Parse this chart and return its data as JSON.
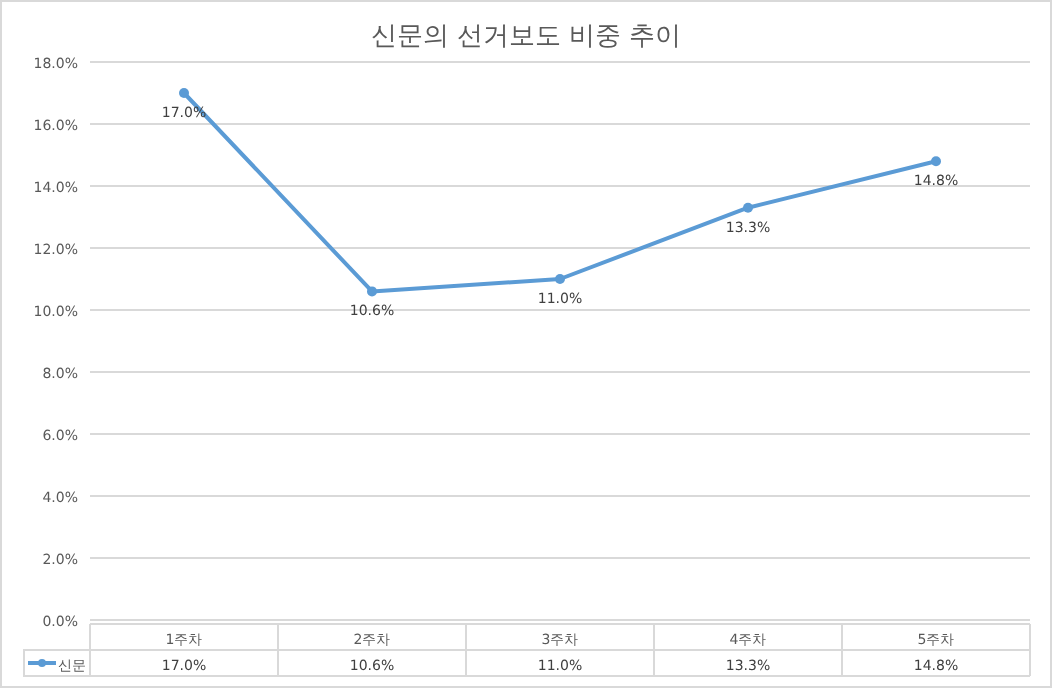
{
  "chart_data": {
    "type": "line",
    "title": "신문의 선거보도 비중 추이",
    "categories": [
      "1주차",
      "2주차",
      "3주차",
      "4주차",
      "5주차"
    ],
    "series": [
      {
        "name": "신문",
        "color": "#5b9bd5",
        "values": [
          17.0,
          10.6,
          11.0,
          13.3,
          14.8
        ],
        "value_labels": [
          "17.0%",
          "10.6%",
          "11.0%",
          "13.3%",
          "14.8%"
        ]
      }
    ],
    "ylim": [
      0,
      18
    ],
    "yticks": [
      {
        "value": 0,
        "label": "0.0%"
      },
      {
        "value": 2,
        "label": "2.0%"
      },
      {
        "value": 4,
        "label": "4.0%"
      },
      {
        "value": 6,
        "label": "6.0%"
      },
      {
        "value": 8,
        "label": "8.0%"
      },
      {
        "value": 10,
        "label": "10.0%"
      },
      {
        "value": 12,
        "label": "12.0%"
      },
      {
        "value": 14,
        "label": "14.0%"
      },
      {
        "value": 16,
        "label": "16.0%"
      },
      {
        "value": 18,
        "label": "18.0%"
      }
    ],
    "grid": "y",
    "legend": "bottom left",
    "marker": "circle",
    "line_style": "solid"
  }
}
